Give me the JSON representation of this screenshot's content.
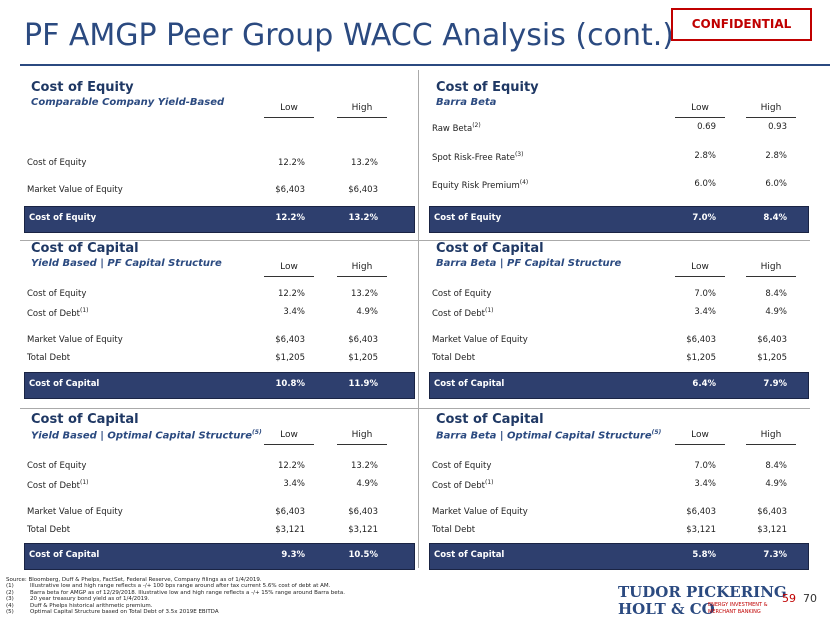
{
  "header": {
    "title": "PF AMGP Peer Group WACC Analysis (cont.)",
    "badge": "CONFIDENTIAL"
  },
  "panels": [
    {
      "title": "Cost of Equity",
      "subtitle": "Comparable Company Yield-Based",
      "columns": [
        "Low",
        "High"
      ],
      "rows": [
        {
          "label": "Cost of Equity",
          "low": "12.2%",
          "high": "13.2%"
        },
        {
          "label": "Market Value of Equity",
          "low": "$6,403",
          "high": "$6,403"
        }
      ],
      "total": {
        "label": "Cost of Equity",
        "low": "12.2%",
        "high": "13.2%"
      }
    },
    {
      "title": "Cost of Equity",
      "subtitle": "Barra Beta",
      "columns": [
        "Low",
        "High"
      ],
      "rows": [
        {
          "label": "Raw Beta",
          "note": "(2)",
          "low": "0.69",
          "high": "0.93"
        },
        {
          "label": "Spot Risk-Free Rate",
          "note": "(3)",
          "low": "2.8%",
          "high": "2.8%"
        },
        {
          "label": "Equity Risk Premium",
          "note": "(4)",
          "low": "6.0%",
          "high": "6.0%"
        }
      ],
      "total": {
        "label": "Cost of Equity",
        "low": "7.0%",
        "high": "8.4%"
      }
    },
    {
      "title": "Cost of Capital",
      "subtitle": "Yield Based | PF Capital Structure",
      "columns": [
        "Low",
        "High"
      ],
      "rows": [
        {
          "label": "Cost of Equity",
          "low": "12.2%",
          "high": "13.2%"
        },
        {
          "label": "Cost of Debt",
          "note": "(1)",
          "low": "3.4%",
          "high": "4.9%"
        },
        {
          "label": "Market Value of Equity",
          "low": "$6,403",
          "high": "$6,403"
        },
        {
          "label": "Total Debt",
          "low": "$1,205",
          "high": "$1,205"
        }
      ],
      "total": {
        "label": "Cost of Capital",
        "low": "10.8%",
        "high": "11.9%"
      }
    },
    {
      "title": "Cost of Capital",
      "subtitle": "Barra Beta | PF Capital Structure",
      "columns": [
        "Low",
        "High"
      ],
      "rows": [
        {
          "label": "Cost of Equity",
          "low": "7.0%",
          "high": "8.4%"
        },
        {
          "label": "Cost of Debt",
          "note": "(1)",
          "low": "3.4%",
          "high": "4.9%"
        },
        {
          "label": "Market Value of Equity",
          "low": "$6,403",
          "high": "$6,403"
        },
        {
          "label": "Total Debt",
          "low": "$1,205",
          "high": "$1,205"
        }
      ],
      "total": {
        "label": "Cost of Capital",
        "low": "6.4%",
        "high": "7.9%"
      }
    },
    {
      "title": "Cost of Capital",
      "subtitle": "Yield Based | Optimal Capital Structure",
      "subtitle_note": "(5)",
      "columns": [
        "Low",
        "High"
      ],
      "rows": [
        {
          "label": "Cost of Equity",
          "low": "12.2%",
          "high": "13.2%"
        },
        {
          "label": "Cost of Debt",
          "note": "(1)",
          "low": "3.4%",
          "high": "4.9%"
        },
        {
          "label": "Market Value of Equity",
          "low": "$6,403",
          "high": "$6,403"
        },
        {
          "label": "Total Debt",
          "low": "$3,121",
          "high": "$3,121"
        }
      ],
      "total": {
        "label": "Cost of Capital",
        "low": "9.3%",
        "high": "10.5%"
      }
    },
    {
      "title": "Cost of Capital",
      "subtitle": "Barra Beta | Optimal Capital Structure",
      "subtitle_note": "(5)",
      "columns": [
        "Low",
        "High"
      ],
      "rows": [
        {
          "label": "Cost of Equity",
          "low": "7.0%",
          "high": "8.4%"
        },
        {
          "label": "Cost of Debt",
          "note": "(1)",
          "low": "3.4%",
          "high": "4.9%"
        },
        {
          "label": "Market Value of Equity",
          "low": "$6,403",
          "high": "$6,403"
        },
        {
          "label": "Total Debt",
          "low": "$3,121",
          "high": "$3,121"
        }
      ],
      "total": {
        "label": "Cost of Capital",
        "low": "5.8%",
        "high": "7.3%"
      }
    }
  ],
  "footnotes": {
    "source": "Source: Bloomberg, Duff & Phelps, FactSet, Federal Reserve, Company filings as of 1/4/2019.",
    "notes": [
      {
        "mark": "(1)",
        "text": "Illustrative low and high range reflects a -/+ 100 bps range around after tax current 5.6% cost of debt at AM."
      },
      {
        "mark": "(2)",
        "text": "Barra beta for AMGP as of 12/29/2018. Illustrative low and high range reflects a -/+ 15% range around Barra beta."
      },
      {
        "mark": "(3)",
        "text": "20 year treasury bond yield as of 1/4/2019."
      },
      {
        "mark": "(4)",
        "text": "Duff & Phelps historical arithmetic premium."
      },
      {
        "mark": "(5)",
        "text": "Optimal Capital Structure based on Total Debt of 3.5x 2019E EBITDA"
      }
    ]
  },
  "logo": {
    "line1": "TUDOR PICKERING",
    "line2": "HOLT & CO",
    "tag1": "ENERGY INVESTMENT &",
    "tag2": "MERCHANT BANKING"
  },
  "page": {
    "current": "59",
    "total": "70"
  }
}
